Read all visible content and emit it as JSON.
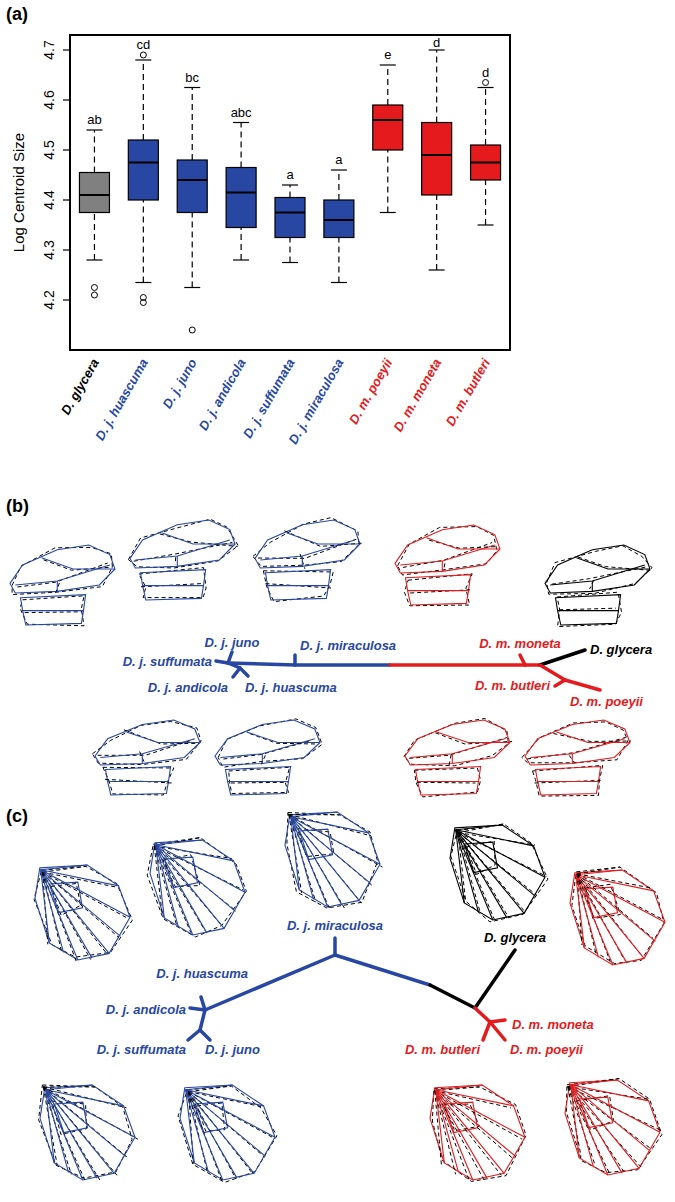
{
  "chart_data": {
    "type": "box",
    "panel_label": "(a)",
    "y_label": "Log Centroid Size",
    "categories": [
      "D. glycera",
      "D. j. huascuma",
      "D. j. juno",
      "D. j. andicola",
      "D. j. suffumata",
      "D. j. miraculosa",
      "D. m. poeyii",
      "D. m. moneta",
      "D. m. butleri"
    ],
    "colors": [
      "#808080",
      "#2747a3",
      "#2747a3",
      "#2747a3",
      "#2747a3",
      "#2747a3",
      "#e41a1c",
      "#e41a1c",
      "#e41a1c"
    ],
    "low": [
      4.28,
      4.235,
      4.225,
      4.28,
      4.275,
      4.235,
      4.375,
      4.26,
      4.35
    ],
    "q1": [
      4.375,
      4.4,
      4.375,
      4.345,
      4.325,
      4.325,
      4.5,
      4.41,
      4.44
    ],
    "median": [
      4.41,
      4.475,
      4.44,
      4.415,
      4.375,
      4.36,
      4.56,
      4.49,
      4.475
    ],
    "q3": [
      4.455,
      4.52,
      4.48,
      4.465,
      4.405,
      4.4,
      4.59,
      4.555,
      4.51
    ],
    "high": [
      4.54,
      4.68,
      4.625,
      4.555,
      4.43,
      4.46,
      4.67,
      4.7,
      4.625
    ],
    "outliers": [
      [
        4.21,
        4.225
      ],
      [
        4.69,
        4.205,
        4.195
      ],
      [
        4.14
      ],
      [],
      [],
      [],
      [],
      [],
      [
        4.635
      ]
    ],
    "letters": [
      "ab",
      "cd",
      "bc",
      "abc",
      "a",
      "a",
      "e",
      "d",
      "d"
    ],
    "ylim": [
      4.1,
      4.73
    ],
    "yticks": [
      4.2,
      4.3,
      4.4,
      4.5,
      4.6,
      4.7
    ]
  },
  "trees": [
    {
      "panel_label": "(b)",
      "leaves": [
        {
          "label": "D. j. suffumata",
          "color": "#2747a3"
        },
        {
          "label": "D. j. juno",
          "color": "#2747a3"
        },
        {
          "label": "D. j. miraculosa",
          "color": "#2747a3"
        },
        {
          "label": "D. m. moneta",
          "color": "#e41a1c"
        },
        {
          "label": "D. glycera",
          "color": "#000000"
        },
        {
          "label": "D. j. andicola",
          "color": "#2747a3"
        },
        {
          "label": "D. j. huascuma",
          "color": "#2747a3"
        },
        {
          "label": "D. m. butleri",
          "color": "#e41a1c"
        },
        {
          "label": "D. m. poeyii",
          "color": "#e41a1c"
        }
      ]
    },
    {
      "panel_label": "(c)",
      "leaves": [
        {
          "label": "D. j. andicola",
          "color": "#2747a3"
        },
        {
          "label": "D. j. huascuma",
          "color": "#2747a3"
        },
        {
          "label": "D. j. miraculosa",
          "color": "#2747a3"
        },
        {
          "label": "D. glycera",
          "color": "#000000"
        },
        {
          "label": "D. m. moneta",
          "color": "#e41a1c"
        },
        {
          "label": "D. j. suffumata",
          "color": "#2747a3"
        },
        {
          "label": "D. j. juno",
          "color": "#2747a3"
        },
        {
          "label": "D. m. butleri",
          "color": "#e41a1c"
        },
        {
          "label": "D. m. poeyii",
          "color": "#e41a1c"
        }
      ]
    }
  ]
}
